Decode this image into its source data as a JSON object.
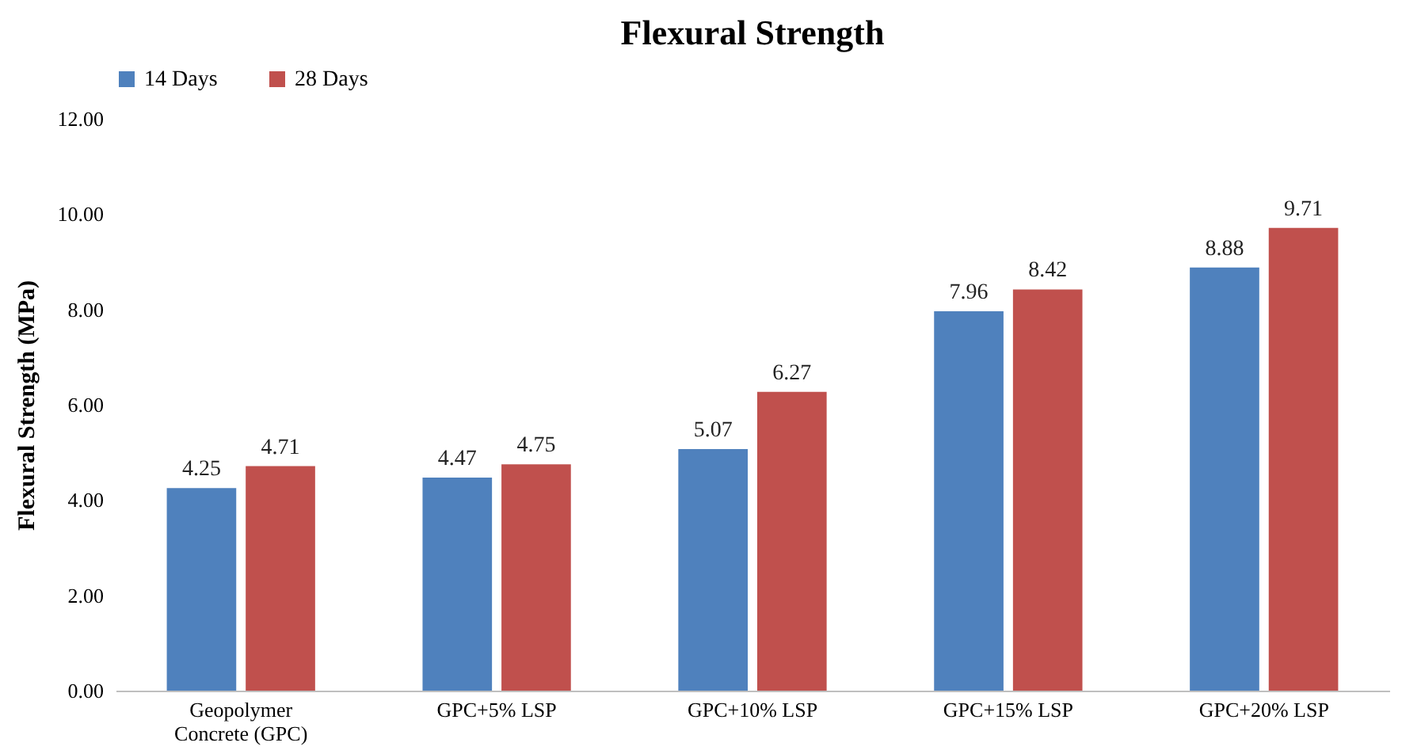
{
  "chart_data": {
    "type": "bar",
    "title": "Flexural Strength",
    "ylabel": "Flexural Strength (MPa)",
    "categories": [
      "Geopolymer Concrete (GPC)",
      "GPC+5% LSP",
      "GPC+10% LSP",
      "GPC+15% LSP",
      "GPC+20% LSP"
    ],
    "series": [
      {
        "name": "14 Days",
        "color": "#4f81bd",
        "values": [
          4.25,
          4.47,
          5.07,
          7.96,
          8.88
        ]
      },
      {
        "name": "28 Days",
        "color": "#c0504d",
        "values": [
          4.71,
          4.75,
          6.27,
          8.42,
          9.71
        ]
      }
    ],
    "ylim": [
      0,
      12
    ],
    "yticks": [
      {
        "value": 0,
        "label": "0.00"
      },
      {
        "value": 2,
        "label": "2.00"
      },
      {
        "value": 4,
        "label": "4.00"
      },
      {
        "value": 6,
        "label": "6.00"
      },
      {
        "value": 8,
        "label": "8.00"
      },
      {
        "value": 10,
        "label": "10.00"
      },
      {
        "value": 12,
        "label": "12.00"
      }
    ],
    "data_labels": true,
    "grid": false,
    "legend": "top"
  }
}
